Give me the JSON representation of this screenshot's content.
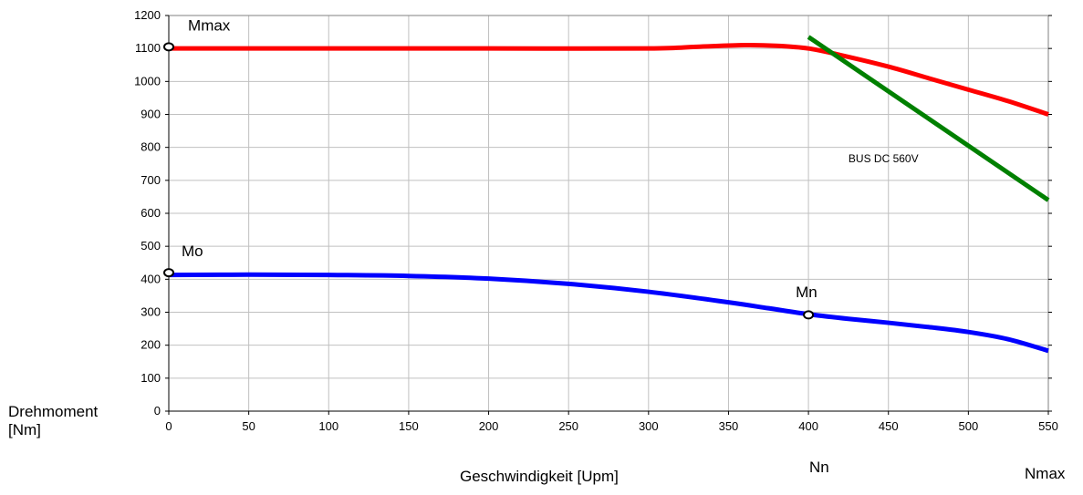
{
  "chart_data": {
    "type": "line",
    "xlabel": "Geschwindigkeit [Upm]",
    "ylabel_line1": "Drehmoment",
    "ylabel_line2": "[Nm]",
    "xlim": [
      0,
      550
    ],
    "ylim": [
      0,
      1200
    ],
    "x_ticks": [
      0,
      50,
      100,
      150,
      200,
      250,
      300,
      350,
      400,
      450,
      500,
      550
    ],
    "y_ticks": [
      0,
      100,
      200,
      300,
      400,
      500,
      600,
      700,
      800,
      900,
      1000,
      1100,
      1200
    ],
    "grid": true,
    "legend": "none",
    "series": [
      {
        "color": "#ff0000",
        "points": [
          [
            0,
            1100
          ],
          [
            100,
            1100
          ],
          [
            200,
            1100
          ],
          [
            300,
            1100
          ],
          [
            330,
            1105
          ],
          [
            360,
            1110
          ],
          [
            380,
            1108
          ],
          [
            400,
            1100
          ],
          [
            420,
            1080
          ],
          [
            450,
            1045
          ],
          [
            475,
            1010
          ],
          [
            500,
            975
          ],
          [
            525,
            940
          ],
          [
            550,
            900
          ]
        ]
      },
      {
        "color": "#0000ff",
        "points": [
          [
            0,
            413
          ],
          [
            50,
            414
          ],
          [
            100,
            413
          ],
          [
            150,
            410
          ],
          [
            200,
            402
          ],
          [
            250,
            386
          ],
          [
            300,
            362
          ],
          [
            350,
            330
          ],
          [
            375,
            312
          ],
          [
            400,
            294
          ],
          [
            425,
            280
          ],
          [
            450,
            268
          ],
          [
            475,
            255
          ],
          [
            500,
            240
          ],
          [
            525,
            218
          ],
          [
            550,
            183
          ]
        ]
      },
      {
        "color": "#008000",
        "points": [
          [
            400,
            1135
          ],
          [
            550,
            640
          ]
        ]
      }
    ],
    "markers": [
      {
        "x": 0,
        "y": 1105
      },
      {
        "x": 0,
        "y": 420
      },
      {
        "x": 400,
        "y": 292
      }
    ],
    "annotations": [
      {
        "text": "Mmax",
        "x": 12,
        "y": 1155,
        "size": "large"
      },
      {
        "text": "Mo",
        "x": 8,
        "y": 470,
        "size": "large"
      },
      {
        "text": "Mn",
        "x": 392,
        "y": 345,
        "size": "large"
      },
      {
        "text": "BUS DC 560V",
        "x": 425,
        "y": 755,
        "size": "small"
      }
    ],
    "extra_labels": {
      "nn": "Nn",
      "nmax": "Nmax"
    }
  }
}
